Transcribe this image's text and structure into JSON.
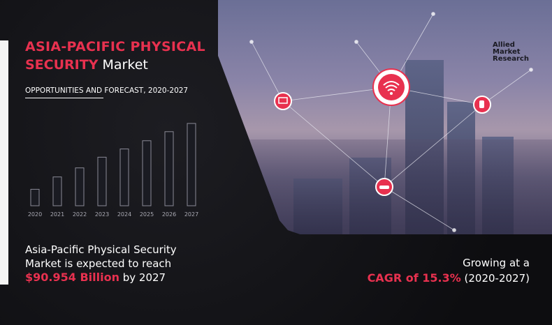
{
  "header": {
    "title_red": "ASIA-PACIFIC PHYSICAL",
    "title_red2": "SECURITY",
    "title_white": "Market",
    "subtitle": "OPPORTUNITIES AND FORECAST, 2020-2027"
  },
  "logo": {
    "line1": "Allied",
    "line2": "Market",
    "line3": "Research"
  },
  "chart_data": {
    "type": "bar",
    "categories": [
      "2020",
      "2021",
      "2022",
      "2023",
      "2024",
      "2025",
      "2026",
      "2027"
    ],
    "values": [
      20,
      35,
      46,
      59,
      69,
      79,
      90,
      100
    ],
    "title": "",
    "xlabel": "",
    "ylabel": "",
    "grid": false,
    "bar_color": "#8a8a96"
  },
  "description": {
    "line1": "Asia-Pacific Physical Security",
    "line2": "Market is expected to reach",
    "value": "$90.954 Billion",
    "suffix": "by 2027"
  },
  "growth": {
    "line1": "Growing at a",
    "cagr": "CAGR of 15.3%",
    "period": "(2020-2027)"
  },
  "icons": [
    "wifi-icon",
    "laptop-icon",
    "hand-touch-icon",
    "car-icon"
  ],
  "colors": {
    "accent": "#e8314f",
    "background": "#111114"
  }
}
